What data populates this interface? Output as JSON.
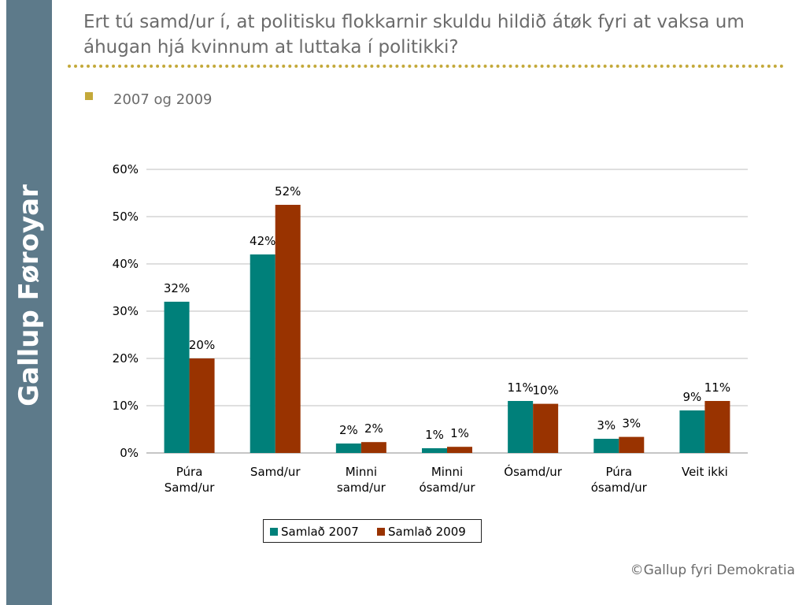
{
  "brand": "Gallup Føroyar",
  "title": "Ert tú samd/ur í, at politisku flokkarnir skuldu hildið átøk fyri at vaksa um áhugan hjá kvinnum at luttaka í politikki?",
  "bullet": "2007 og 2009",
  "footer": "©Gallup fyri Demokratia",
  "colors": {
    "side_band": "#5d7a8a",
    "accent": "#c4a93a",
    "series_2007": "#00807a",
    "series_2009": "#993300",
    "gridline": "#bfbfbf"
  },
  "chart_data": {
    "type": "bar",
    "categories": [
      [
        "Púra",
        "Samd/ur"
      ],
      [
        "Samd/ur"
      ],
      [
        "Minni",
        "samd/ur"
      ],
      [
        "Minni",
        "ósamd/ur"
      ],
      [
        "Ósamd/ur"
      ],
      [
        "Púra",
        "ósamd/ur"
      ],
      [
        "Veit ikki"
      ]
    ],
    "series": [
      {
        "name": "Samlað 2007",
        "values": [
          32,
          42,
          2,
          1,
          11,
          3,
          9
        ],
        "labels": [
          "32%",
          "42%",
          "2%",
          "1%",
          "11%",
          "3%",
          "9%"
        ]
      },
      {
        "name": "Samlað 2009",
        "values": [
          20,
          52.5,
          2.3,
          1.3,
          10.4,
          3.4,
          11
        ],
        "labels": [
          "20%",
          "52%",
          "2%",
          "1%",
          "10%",
          "3%",
          "11%"
        ]
      }
    ],
    "y_ticks": [
      "0%",
      "10%",
      "20%",
      "30%",
      "40%",
      "50%",
      "60%"
    ],
    "ylim": [
      0,
      60
    ],
    "grid": true,
    "legend_position": "bottom"
  }
}
